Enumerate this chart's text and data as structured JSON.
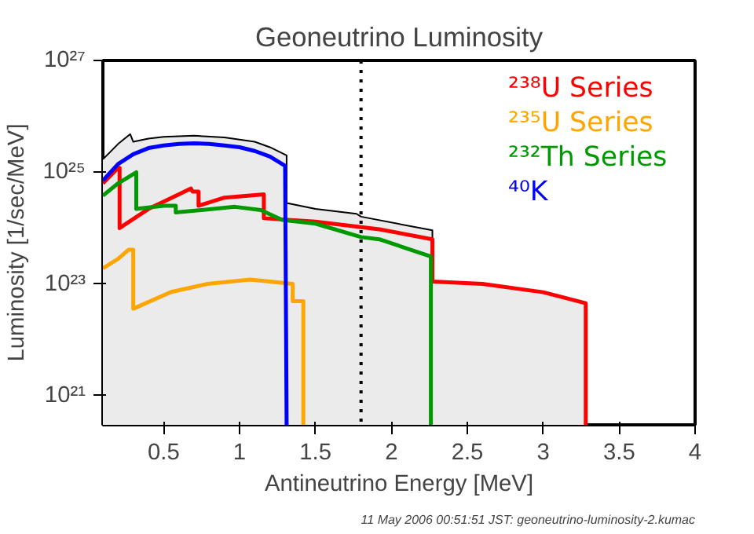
{
  "chart_data": {
    "type": "line",
    "title": "Geoneutrino Luminosity",
    "xlabel": "Antineutrino Energy [MeV]",
    "ylabel": "Luminosity [1/sec/MeV]",
    "xlim": [
      0.1,
      4
    ],
    "xticks": [
      0.5,
      1,
      1.5,
      2,
      2.5,
      3,
      3.5,
      4
    ],
    "ylim": [
      3e+20,
      1e+27
    ],
    "yticks": [
      {
        "value": 1e+21,
        "label": "10²¹"
      },
      {
        "value": 1e+23,
        "label": "10²³"
      },
      {
        "value": 1e+25,
        "label": "10²⁵"
      },
      {
        "value": 1e+27,
        "label": "10²⁷"
      }
    ],
    "log": "y",
    "legend": "top right",
    "ref_lines": [
      {
        "axis": "x",
        "value": 1.8,
        "color": "#000000",
        "line_style": "dotted"
      }
    ],
    "annotations": [
      "11 May 2006 00:51:51 JST: geoneutrino-luminosity-2.kumac"
    ],
    "series": [
      {
        "type": "area",
        "color": "#000000",
        "x": [
          0.1,
          0.2,
          0.28,
          0.3,
          0.4,
          0.5,
          0.7,
          0.9,
          1.1,
          1.2,
          1.31,
          1.31,
          1.5,
          1.77,
          1.8,
          2.27,
          2.27,
          2.6,
          3.0,
          3.28,
          3.28
        ],
        "values": [
          1.7e+25,
          3.2e+25,
          4.8e+25,
          3.5e+25,
          4e+25,
          4.3e+25,
          4.5e+25,
          4.2e+25,
          3.5e+25,
          2.8e+25,
          2e+25,
          2.8e+24,
          2.2e+24,
          1.8e+24,
          1.6e+24,
          9.1e+23,
          1.1e+23,
          1e+23,
          7.1e+22,
          4.5e+22,
          3e+20
        ]
      },
      {
        "name": "²³⁸U Series",
        "color": "#ff0000",
        "x": [
          0.1,
          0.2,
          0.21,
          0.21,
          0.4,
          0.6,
          0.68,
          0.69,
          0.73,
          0.73,
          0.9,
          1.16,
          1.16,
          1.5,
          1.92,
          2.27,
          2.27,
          2.6,
          3.0,
          3.28,
          3.28
        ],
        "values": [
          6.3e+24,
          1.2e+25,
          1.2e+25,
          1e+24,
          2.2e+24,
          4e+24,
          5.1e+24,
          4.5e+24,
          4.5e+24,
          2.5e+24,
          3.5e+24,
          4e+24,
          1.5e+24,
          1.3e+24,
          9.5e+23,
          6.3e+23,
          1.1e+23,
          1e+23,
          7.1e+22,
          4.5e+22,
          3e+20
        ]
      },
      {
        "name": "²³⁵U Series",
        "color": "#ffa500",
        "x": [
          0.1,
          0.2,
          0.27,
          0.3,
          0.3,
          0.55,
          0.79,
          1.07,
          1.35,
          1.35,
          1.42,
          1.42
        ],
        "values": [
          1.9e+23,
          2.8e+23,
          4.1e+23,
          4.1e+23,
          3.6e+22,
          7.2e+22,
          1e+23,
          1.2e+23,
          1e+23,
          4.9e+22,
          4.9e+22,
          3e+20
        ]
      },
      {
        "name": "²³²Th Series",
        "color": "#009900",
        "x": [
          0.1,
          0.2,
          0.32,
          0.32,
          0.5,
          0.58,
          0.58,
          0.97,
          1.14,
          1.28,
          1.5,
          1.8,
          1.92,
          2.26,
          2.26
        ],
        "values": [
          3.8e+24,
          6.3e+24,
          1e+25,
          2.2e+24,
          2.5e+24,
          2.5e+24,
          1.9e+24,
          2.4e+24,
          2.1e+24,
          1.4e+24,
          1.2e+24,
          6.9e+23,
          6.3e+23,
          3.1e+23,
          3e+20
        ]
      },
      {
        "name": "⁴⁰K",
        "color": "#0000ff",
        "x": [
          0.1,
          0.2,
          0.3,
          0.4,
          0.5,
          0.6,
          0.7,
          0.8,
          0.9,
          1.0,
          1.1,
          1.2,
          1.3,
          1.31
        ],
        "values": [
          7.1e+24,
          1.4e+25,
          2.1e+25,
          2.7e+25,
          3e+25,
          3.2e+25,
          3.3e+25,
          3.2e+25,
          3e+25,
          2.8e+25,
          2.4e+25,
          1.9e+25,
          1.3e+25,
          3e+20
        ]
      }
    ]
  }
}
